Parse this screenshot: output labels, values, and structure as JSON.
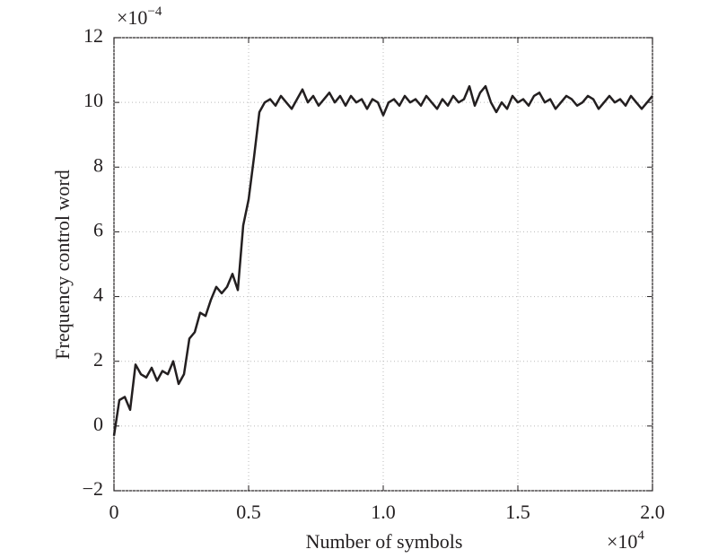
{
  "chart_data": {
    "type": "line",
    "xlabel": "Number of symbols",
    "ylabel": "Frequency control word",
    "x_multiplier": {
      "base": "×10",
      "exponent": "4"
    },
    "y_multiplier": {
      "base": "×10",
      "exponent": "−4"
    },
    "xlim": [
      0,
      2
    ],
    "ylim": [
      -2,
      12
    ],
    "xticks": [
      0,
      0.5,
      {
        "value": 1,
        "label": "1.0"
      },
      1.5,
      {
        "value": 2,
        "label": "2.0"
      }
    ],
    "yticks": [
      {
        "value": -2,
        "label": "−2"
      },
      0,
      2,
      4,
      6,
      8,
      10,
      12
    ],
    "grid": true,
    "x": [
      0,
      0.02,
      0.04,
      0.06,
      0.08,
      0.1,
      0.12,
      0.14,
      0.16,
      0.18,
      0.2,
      0.22,
      0.24,
      0.26,
      0.28,
      0.3,
      0.32,
      0.34,
      0.36,
      0.38,
      0.4,
      0.42,
      0.44,
      0.46,
      0.48,
      0.5,
      0.52,
      0.54,
      0.56,
      0.58,
      0.6,
      0.62,
      0.64,
      0.66,
      0.68,
      0.7,
      0.72,
      0.74,
      0.76,
      0.78,
      0.8,
      0.82,
      0.84,
      0.86,
      0.88,
      0.9,
      0.92,
      0.94,
      0.96,
      0.98,
      1,
      1.02,
      1.04,
      1.06,
      1.08,
      1.1,
      1.12,
      1.14,
      1.16,
      1.18,
      1.2,
      1.22,
      1.24,
      1.26,
      1.28,
      1.3,
      1.32,
      1.34,
      1.36,
      1.38,
      1.4,
      1.42,
      1.44,
      1.46,
      1.48,
      1.5,
      1.52,
      1.54,
      1.56,
      1.58,
      1.6,
      1.62,
      1.64,
      1.66,
      1.68,
      1.7,
      1.72,
      1.74,
      1.76,
      1.78,
      1.8,
      1.82,
      1.84,
      1.86,
      1.88,
      1.9,
      1.92,
      1.94,
      1.96,
      1.98,
      2
    ],
    "series": [
      {
        "color": "#231f20",
        "values": [
          -0.3,
          0.8,
          0.9,
          0.5,
          1.9,
          1.6,
          1.5,
          1.8,
          1.4,
          1.7,
          1.6,
          2.0,
          1.3,
          1.6,
          2.7,
          2.9,
          3.5,
          3.4,
          3.9,
          4.3,
          4.1,
          4.3,
          4.7,
          4.2,
          6.2,
          7.0,
          8.3,
          9.7,
          10.0,
          10.1,
          9.9,
          10.2,
          10.0,
          9.8,
          10.1,
          10.4,
          10.0,
          10.2,
          9.9,
          10.1,
          10.3,
          10.0,
          10.2,
          9.9,
          10.2,
          10.0,
          10.1,
          9.8,
          10.1,
          10.0,
          9.6,
          10.0,
          10.1,
          9.9,
          10.2,
          10.0,
          10.1,
          9.9,
          10.2,
          10.0,
          9.8,
          10.1,
          9.9,
          10.2,
          10.0,
          10.1,
          10.5,
          9.9,
          10.3,
          10.5,
          10.0,
          9.7,
          10.0,
          9.8,
          10.2,
          10.0,
          10.1,
          9.9,
          10.2,
          10.3,
          10.0,
          10.1,
          9.8,
          10.0,
          10.2,
          10.1,
          9.9,
          10.0,
          10.2,
          10.1,
          9.8,
          10.0,
          10.2,
          10.0,
          10.1,
          9.9,
          10.2,
          10.0,
          9.8,
          10.0,
          10.2
        ]
      }
    ]
  }
}
